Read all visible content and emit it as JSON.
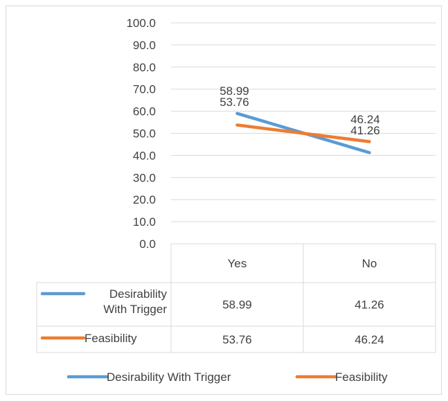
{
  "chart_data": {
    "type": "line",
    "categories": [
      "Yes",
      "No"
    ],
    "series": [
      {
        "name": "Desirability With Trigger",
        "values": [
          58.99,
          41.26
        ],
        "color": "#5b9bd5"
      },
      {
        "name": "Feasibility",
        "values": [
          53.76,
          46.24
        ],
        "color": "#ed7d31"
      }
    ],
    "ylim": [
      0,
      100
    ],
    "yticks": [
      "0.0",
      "10.0",
      "20.0",
      "30.0",
      "40.0",
      "50.0",
      "60.0",
      "70.0",
      "80.0",
      "90.0",
      "100.0"
    ],
    "data_labels": {
      "Yes": [
        "58.99",
        "53.76"
      ],
      "No": [
        "46.24",
        "41.26"
      ]
    },
    "table": {
      "header": [
        "Yes",
        "No"
      ],
      "rows": [
        {
          "label_line1": "Desirability",
          "label_line2": "With Trigger",
          "values": [
            "58.99",
            "41.26"
          ]
        },
        {
          "label_line1": "Feasibility",
          "label_line2": "",
          "values": [
            "53.76",
            "46.24"
          ]
        }
      ]
    },
    "legend": {
      "position": "bottom",
      "entries": [
        "Desirability With Trigger",
        "Feasibility"
      ]
    },
    "grid": true
  }
}
